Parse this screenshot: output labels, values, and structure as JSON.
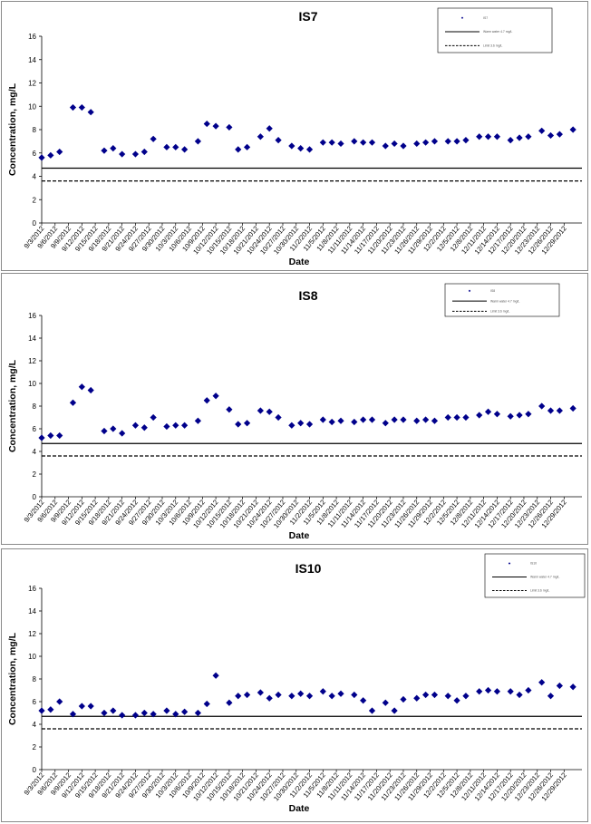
{
  "chart_data": [
    {
      "type": "scatter",
      "title": "IS7",
      "xlabel": "Date",
      "ylabel": "Concentration, mg/L",
      "ylim": [
        0,
        16
      ],
      "yticks": [
        0,
        2,
        4,
        6,
        8,
        10,
        12,
        14,
        16
      ],
      "xticks": [
        "9/3/2012",
        "9/6/2012",
        "9/9/2012",
        "9/12/2012",
        "9/15/2012",
        "9/18/2012",
        "9/21/2012",
        "9/24/2012",
        "9/27/2012",
        "9/30/2012",
        "10/3/2012",
        "10/6/2012",
        "10/9/2012",
        "10/12/2012",
        "10/15/2012",
        "10/18/2012",
        "10/21/2012",
        "10/24/2012",
        "10/27/2012",
        "10/30/2012",
        "11/2/2012",
        "11/5/2012",
        "11/8/2012",
        "11/11/2012",
        "11/14/2012",
        "11/17/2012",
        "11/20/2012",
        "11/23/2012",
        "11/26/2012",
        "11/29/2012",
        "12/2/2012",
        "12/5/2012",
        "12/8/2012",
        "12/11/2012",
        "12/14/2012",
        "12/17/2012",
        "12/20/2012",
        "12/23/2012",
        "12/26/2012",
        "12/29/2012"
      ],
      "x_range": [
        "2012-09-03",
        "2013-01-02"
      ],
      "grid": false,
      "legend_position": "top-right",
      "series": [
        {
          "name": "IS7",
          "marker": "diamond",
          "color": "#00008b",
          "x": [
            "2012-09-03",
            "2012-09-05",
            "2012-09-07",
            "2012-09-10",
            "2012-09-12",
            "2012-09-14",
            "2012-09-17",
            "2012-09-19",
            "2012-09-21",
            "2012-09-24",
            "2012-09-26",
            "2012-09-28",
            "2012-10-01",
            "2012-10-03",
            "2012-10-05",
            "2012-10-08",
            "2012-10-10",
            "2012-10-12",
            "2012-10-15",
            "2012-10-17",
            "2012-10-19",
            "2012-10-22",
            "2012-10-24",
            "2012-10-26",
            "2012-10-29",
            "2012-10-31",
            "2012-11-02",
            "2012-11-05",
            "2012-11-07",
            "2012-11-09",
            "2012-11-12",
            "2012-11-14",
            "2012-11-16",
            "2012-11-19",
            "2012-11-21",
            "2012-11-23",
            "2012-11-26",
            "2012-11-28",
            "2012-11-30",
            "2012-12-03",
            "2012-12-05",
            "2012-12-07",
            "2012-12-10",
            "2012-12-12",
            "2012-12-14",
            "2012-12-17",
            "2012-12-19",
            "2012-12-21",
            "2012-12-24",
            "2012-12-26",
            "2012-12-28",
            "2012-12-31"
          ],
          "y": [
            5.6,
            5.8,
            6.1,
            9.9,
            9.9,
            9.5,
            6.2,
            6.4,
            5.9,
            5.9,
            6.1,
            7.2,
            6.5,
            6.5,
            6.3,
            7.0,
            8.5,
            8.3,
            8.2,
            6.3,
            6.5,
            7.4,
            8.1,
            7.1,
            6.6,
            6.4,
            6.3,
            6.9,
            6.9,
            6.8,
            7.0,
            6.9,
            6.9,
            6.6,
            6.8,
            6.6,
            6.8,
            6.9,
            7.0,
            7.0,
            7.0,
            7.1,
            7.4,
            7.4,
            7.4,
            7.1,
            7.3,
            7.4,
            7.9,
            7.5,
            7.6,
            8.0
          ]
        }
      ],
      "reference_lines": [
        {
          "name": "Warm water 4.7 mg/L",
          "y": 4.7,
          "style": "solid"
        },
        {
          "name": "Limit 3.6 mg/L",
          "y": 3.6,
          "style": "dashed"
        }
      ]
    },
    {
      "type": "scatter",
      "title": "IS8",
      "xlabel": "Date",
      "ylabel": "Concentration, mg/L",
      "ylim": [
        0,
        16
      ],
      "yticks": [
        0,
        2,
        4,
        6,
        8,
        10,
        12,
        14,
        16
      ],
      "xticks": [
        "9/3/2012",
        "9/6/2012",
        "9/9/2012",
        "9/12/2012",
        "9/15/2012",
        "9/18/2012",
        "9/21/2012",
        "9/24/2012",
        "9/27/2012",
        "9/30/2012",
        "10/3/2012",
        "10/6/2012",
        "10/9/2012",
        "10/12/2012",
        "10/15/2012",
        "10/18/2012",
        "10/21/2012",
        "10/24/2012",
        "10/27/2012",
        "10/30/2012",
        "11/2/2012",
        "11/5/2012",
        "11/8/2012",
        "11/11/2012",
        "11/14/2012",
        "11/17/2012",
        "11/20/2012",
        "11/23/2012",
        "11/26/2012",
        "11/29/2012",
        "12/2/2012",
        "12/5/2012",
        "12/8/2012",
        "12/11/2012",
        "12/14/2012",
        "12/17/2012",
        "12/20/2012",
        "12/23/2012",
        "12/26/2012",
        "12/29/2012"
      ],
      "x_range": [
        "2012-09-03",
        "2013-01-02"
      ],
      "grid": false,
      "legend_position": "top-right",
      "series": [
        {
          "name": "IS8",
          "marker": "diamond",
          "color": "#00008b",
          "x": [
            "2012-09-03",
            "2012-09-05",
            "2012-09-07",
            "2012-09-10",
            "2012-09-12",
            "2012-09-14",
            "2012-09-17",
            "2012-09-19",
            "2012-09-21",
            "2012-09-24",
            "2012-09-26",
            "2012-09-28",
            "2012-10-01",
            "2012-10-03",
            "2012-10-05",
            "2012-10-08",
            "2012-10-10",
            "2012-10-12",
            "2012-10-15",
            "2012-10-17",
            "2012-10-19",
            "2012-10-22",
            "2012-10-24",
            "2012-10-26",
            "2012-10-29",
            "2012-10-31",
            "2012-11-02",
            "2012-11-05",
            "2012-11-07",
            "2012-11-09",
            "2012-11-12",
            "2012-11-14",
            "2012-11-16",
            "2012-11-19",
            "2012-11-21",
            "2012-11-23",
            "2012-11-26",
            "2012-11-28",
            "2012-11-30",
            "2012-12-03",
            "2012-12-05",
            "2012-12-07",
            "2012-12-10",
            "2012-12-12",
            "2012-12-14",
            "2012-12-17",
            "2012-12-19",
            "2012-12-21",
            "2012-12-24",
            "2012-12-26",
            "2012-12-28",
            "2012-12-31"
          ],
          "y": [
            5.2,
            5.4,
            5.4,
            8.3,
            9.7,
            9.4,
            5.8,
            6.0,
            5.6,
            6.3,
            6.1,
            7.0,
            6.2,
            6.3,
            6.3,
            6.7,
            8.5,
            8.9,
            7.7,
            6.4,
            6.5,
            7.6,
            7.5,
            7.0,
            6.3,
            6.5,
            6.4,
            6.8,
            6.6,
            6.7,
            6.6,
            6.8,
            6.8,
            6.5,
            6.8,
            6.8,
            6.7,
            6.8,
            6.7,
            7.0,
            7.0,
            7.0,
            7.2,
            7.5,
            7.3,
            7.1,
            7.2,
            7.3,
            8.0,
            7.6,
            7.6,
            7.8
          ]
        }
      ],
      "reference_lines": [
        {
          "name": "Warm water 4.7 mg/L",
          "y": 4.7,
          "style": "solid"
        },
        {
          "name": "Limit 3.6 mg/L",
          "y": 3.6,
          "style": "dashed"
        }
      ]
    },
    {
      "type": "scatter",
      "title": "IS10",
      "xlabel": "Date",
      "ylabel": "Concentration, mg/L",
      "ylim": [
        0,
        16
      ],
      "yticks": [
        0,
        2,
        4,
        6,
        8,
        10,
        12,
        14,
        16
      ],
      "xticks": [
        "9/3/2012",
        "9/6/2012",
        "9/9/2012",
        "9/12/2012",
        "9/15/2012",
        "9/18/2012",
        "9/21/2012",
        "9/24/2012",
        "9/27/2012",
        "9/30/2012",
        "10/3/2012",
        "10/6/2012",
        "10/9/2012",
        "10/12/2012",
        "10/15/2012",
        "10/18/2012",
        "10/21/2012",
        "10/24/2012",
        "10/27/2012",
        "10/30/2012",
        "11/2/2012",
        "11/5/2012",
        "11/8/2012",
        "11/11/2012",
        "11/14/2012",
        "11/17/2012",
        "11/20/2012",
        "11/23/2012",
        "11/26/2012",
        "11/29/2012",
        "12/2/2012",
        "12/5/2012",
        "12/8/2012",
        "12/11/2012",
        "12/14/2012",
        "12/17/2012",
        "12/20/2012",
        "12/23/2012",
        "12/26/2012",
        "12/29/2012"
      ],
      "x_range": [
        "2012-09-03",
        "2013-01-02"
      ],
      "grid": false,
      "legend_position": "top-right",
      "series": [
        {
          "name": "IS10",
          "marker": "diamond",
          "color": "#00008b",
          "x": [
            "2012-09-03",
            "2012-09-05",
            "2012-09-07",
            "2012-09-10",
            "2012-09-12",
            "2012-09-14",
            "2012-09-17",
            "2012-09-19",
            "2012-09-21",
            "2012-09-24",
            "2012-09-26",
            "2012-09-28",
            "2012-10-01",
            "2012-10-03",
            "2012-10-05",
            "2012-10-08",
            "2012-10-10",
            "2012-10-12",
            "2012-10-15",
            "2012-10-17",
            "2012-10-19",
            "2012-10-22",
            "2012-10-24",
            "2012-10-26",
            "2012-10-29",
            "2012-10-31",
            "2012-11-02",
            "2012-11-05",
            "2012-11-07",
            "2012-11-09",
            "2012-11-12",
            "2012-11-14",
            "2012-11-16",
            "2012-11-19",
            "2012-11-21",
            "2012-11-23",
            "2012-11-26",
            "2012-11-28",
            "2012-11-30",
            "2012-12-03",
            "2012-12-05",
            "2012-12-07",
            "2012-12-10",
            "2012-12-12",
            "2012-12-14",
            "2012-12-17",
            "2012-12-19",
            "2012-12-21",
            "2012-12-24",
            "2012-12-26",
            "2012-12-28",
            "2012-12-31"
          ],
          "y": [
            5.2,
            5.3,
            6.0,
            4.9,
            5.6,
            5.6,
            5.0,
            5.2,
            4.8,
            4.8,
            5.0,
            4.9,
            5.2,
            4.9,
            5.1,
            5.0,
            5.8,
            8.3,
            5.9,
            6.5,
            6.6,
            6.8,
            6.3,
            6.6,
            6.5,
            6.7,
            6.5,
            6.9,
            6.5,
            6.7,
            6.6,
            6.1,
            5.2,
            5.9,
            5.2,
            6.2,
            6.3,
            6.6,
            6.6,
            6.5,
            6.1,
            6.5,
            6.9,
            7.0,
            6.9,
            6.9,
            6.6,
            7.0,
            7.7,
            6.5,
            7.4,
            7.3
          ]
        }
      ],
      "reference_lines": [
        {
          "name": "Warm water 4.7 mg/L",
          "y": 4.7,
          "style": "solid"
        },
        {
          "name": "Limit 3.6 mg/L",
          "y": 3.6,
          "style": "dashed"
        }
      ]
    }
  ]
}
